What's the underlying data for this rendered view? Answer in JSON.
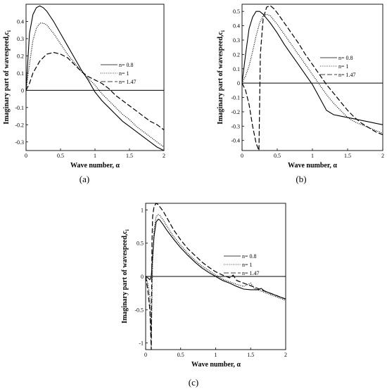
{
  "chart_data": [
    {
      "type": "line",
      "caption": "(a)",
      "xlabel": "Wave number, α",
      "ylabel": "Imaginary part of wavespeed,c",
      "ylabel_sub": "i",
      "xlim": [
        0,
        2
      ],
      "ylim": [
        -0.35,
        0.5
      ],
      "xticks": [
        "0",
        "0.5",
        "1",
        "1.5",
        "2"
      ],
      "yticks": [
        "-0.3",
        "-0.2",
        "-0.1",
        "0",
        "0.1",
        "0.2",
        "0.3",
        "0.4"
      ],
      "grid": false,
      "legend": "right",
      "series": [
        {
          "name": "n= 0.8",
          "style": "solid",
          "x": [
            0,
            0.05,
            0.1,
            0.15,
            0.2,
            0.25,
            0.3,
            0.4,
            0.5,
            0.6,
            0.7,
            0.8,
            0.9,
            1.0,
            1.1,
            1.2,
            1.3,
            1.4,
            1.5,
            1.6,
            1.7,
            1.8,
            1.9,
            2.0
          ],
          "y": [
            0,
            0.33,
            0.44,
            0.48,
            0.49,
            0.48,
            0.46,
            0.4,
            0.33,
            0.26,
            0.19,
            0.12,
            0.06,
            -0.01,
            -0.06,
            -0.1,
            -0.14,
            -0.18,
            -0.21,
            -0.24,
            -0.27,
            -0.3,
            -0.33,
            -0.35
          ]
        },
        {
          "name": "n= 1",
          "style": "dotted",
          "x": [
            0,
            0.05,
            0.1,
            0.15,
            0.2,
            0.25,
            0.3,
            0.4,
            0.5,
            0.6,
            0.7,
            0.8,
            0.9,
            1.0,
            1.1,
            1.2,
            1.3,
            1.4,
            1.5,
            1.6,
            1.7,
            1.8,
            1.9,
            2.0
          ],
          "y": [
            0,
            0.15,
            0.29,
            0.36,
            0.39,
            0.39,
            0.38,
            0.33,
            0.27,
            0.21,
            0.16,
            0.11,
            0.07,
            0.03,
            -0.02,
            -0.06,
            -0.1,
            -0.14,
            -0.17,
            -0.21,
            -0.24,
            -0.27,
            -0.3,
            -0.33
          ]
        },
        {
          "name": "n= 1.47",
          "style": "dashed",
          "x": [
            0,
            0.05,
            0.1,
            0.2,
            0.3,
            0.4,
            0.5,
            0.6,
            0.7,
            0.8,
            0.9,
            1.0,
            1.1,
            1.2,
            1.3,
            1.4,
            1.5,
            1.6,
            1.7,
            1.8,
            1.9,
            2.0
          ],
          "y": [
            0,
            0.04,
            0.1,
            0.17,
            0.21,
            0.22,
            0.21,
            0.19,
            0.15,
            0.11,
            0.08,
            0.06,
            0.04,
            0.01,
            -0.03,
            -0.06,
            -0.09,
            -0.12,
            -0.15,
            -0.18,
            -0.2,
            -0.23
          ]
        }
      ]
    },
    {
      "type": "line",
      "caption": "(b)",
      "xlabel": "Wave number, α",
      "ylabel": "Imaginary part of wavespeed,c",
      "ylabel_sub": "i",
      "xlim": [
        0,
        2
      ],
      "ylim": [
        -0.47,
        0.55
      ],
      "xticks": [
        "0",
        "0.5",
        "1",
        "1.5",
        "2"
      ],
      "yticks": [
        "-0.4",
        "-0.3",
        "-0.2",
        "-0.1",
        "0",
        "0.1",
        "0.2",
        "0.3",
        "0.4",
        "0.5"
      ],
      "grid": false,
      "legend": "right",
      "series": [
        {
          "name": "n= 0.8",
          "style": "solid",
          "x": [
            0,
            0.05,
            0.1,
            0.15,
            0.2,
            0.25,
            0.3,
            0.4,
            0.5,
            0.6,
            0.7,
            0.8,
            0.9,
            1.0,
            1.1,
            1.2,
            1.3,
            1.4,
            1.5,
            1.6,
            1.7,
            1.8,
            1.9,
            2.0
          ],
          "y": [
            0,
            0.2,
            0.38,
            0.46,
            0.5,
            0.5,
            0.48,
            0.42,
            0.35,
            0.27,
            0.2,
            0.13,
            0.06,
            -0.01,
            -0.1,
            -0.19,
            -0.22,
            -0.23,
            -0.24,
            -0.25,
            -0.26,
            -0.27,
            -0.28,
            -0.29
          ]
        },
        {
          "name": "n= 1",
          "style": "dotted",
          "x": [
            0,
            0.05,
            0.1,
            0.15,
            0.2,
            0.25,
            0.3,
            0.35,
            0.4,
            0.5,
            0.6,
            0.7,
            0.8,
            0.9,
            1.0,
            1.1,
            1.2,
            1.3,
            1.4,
            1.5,
            1.6,
            1.7,
            1.8,
            1.9,
            2.0
          ],
          "y": [
            0,
            0.05,
            0.12,
            0.22,
            0.33,
            0.42,
            0.47,
            0.48,
            0.47,
            0.41,
            0.34,
            0.27,
            0.2,
            0.13,
            0.06,
            -0.01,
            -0.08,
            -0.14,
            -0.19,
            -0.24,
            -0.27,
            -0.29,
            -0.31,
            -0.33,
            -0.35
          ]
        },
        {
          "name": "n= 1.47",
          "style": "dashed",
          "x": [
            0,
            0.05,
            0.1,
            0.15,
            0.2,
            0.24,
            0.26,
            0.3,
            0.35,
            0.4,
            0.45,
            0.5,
            0.6,
            0.7,
            0.8,
            0.9,
            1.0,
            1.1,
            1.2,
            1.3,
            1.4,
            1.5,
            1.6,
            1.7,
            1.8,
            1.9,
            2.0
          ],
          "y": [
            0,
            -0.05,
            -0.15,
            -0.3,
            -0.42,
            -0.47,
            0.2,
            0.45,
            0.53,
            0.54,
            0.52,
            0.49,
            0.42,
            0.35,
            0.28,
            0.2,
            0.13,
            0.06,
            -0.01,
            -0.07,
            -0.13,
            -0.19,
            -0.24,
            -0.28,
            -0.31,
            -0.34,
            -0.36
          ]
        }
      ]
    },
    {
      "type": "line",
      "caption": "(c)",
      "xlabel": "Wave number, α",
      "ylabel": "Imaginary part of wavespeed,c",
      "ylabel_sub": "i",
      "xlim": [
        0,
        2
      ],
      "ylim": [
        -1.1,
        1.1
      ],
      "xticks": [
        "0",
        "0.5",
        "1",
        "1.5",
        "2"
      ],
      "yticks": [
        "-1",
        "-0.5",
        "0",
        "0.5",
        "1"
      ],
      "grid": false,
      "legend": "right",
      "series": [
        {
          "name": "n= 0.8",
          "style": "solid",
          "x": [
            0,
            0.03,
            0.06,
            0.08,
            0.1,
            0.12,
            0.15,
            0.18,
            0.2,
            0.25,
            0.3,
            0.4,
            0.5,
            0.6,
            0.7,
            0.8,
            0.9,
            1.0,
            1.1,
            1.2,
            1.3,
            1.4,
            1.5,
            1.6,
            1.65,
            1.7,
            1.8,
            1.9,
            2.0
          ],
          "y": [
            0,
            -0.02,
            -0.05,
            0.0,
            0.3,
            0.6,
            0.82,
            0.86,
            0.85,
            0.78,
            0.7,
            0.56,
            0.43,
            0.32,
            0.22,
            0.13,
            0.06,
            0.0,
            -0.06,
            -0.1,
            -0.15,
            -0.19,
            -0.2,
            -0.2,
            -0.18,
            -0.22,
            -0.26,
            -0.3,
            -0.34
          ]
        },
        {
          "name": "n= 1",
          "style": "dotted",
          "x": [
            0,
            0.03,
            0.06,
            0.08,
            0.1,
            0.12,
            0.15,
            0.18,
            0.2,
            0.25,
            0.3,
            0.4,
            0.5,
            0.6,
            0.7,
            0.8,
            0.9,
            1.0,
            1.1,
            1.2,
            1.3,
            1.4,
            1.5,
            1.55,
            1.6,
            1.7,
            1.8,
            1.9,
            2.0
          ],
          "y": [
            0,
            -0.1,
            -0.3,
            -0.9,
            0.2,
            0.7,
            0.9,
            0.93,
            0.92,
            0.85,
            0.76,
            0.6,
            0.47,
            0.35,
            0.25,
            0.16,
            0.09,
            0.02,
            -0.04,
            -0.08,
            -0.12,
            -0.15,
            -0.1,
            -0.18,
            -0.2,
            -0.24,
            -0.28,
            -0.32,
            -0.36
          ]
        },
        {
          "name": "n= 1.47",
          "style": "dashed",
          "x": [
            0,
            0.03,
            0.06,
            0.08,
            0.09,
            0.1,
            0.12,
            0.15,
            0.18,
            0.2,
            0.25,
            0.3,
            0.4,
            0.5,
            0.6,
            0.7,
            0.8,
            0.9,
            1.0,
            1.1,
            1.2,
            1.25,
            1.3,
            1.4,
            1.5,
            1.6,
            1.7,
            1.8,
            1.9,
            2.0
          ],
          "y": [
            0,
            -0.2,
            -0.5,
            -1.1,
            0.5,
            0.9,
            1.05,
            1.1,
            1.08,
            1.05,
            0.98,
            0.89,
            0.7,
            0.55,
            0.42,
            0.32,
            0.22,
            0.14,
            0.07,
            0.02,
            -0.02,
            0.02,
            -0.06,
            -0.1,
            -0.14,
            -0.18,
            -0.22,
            -0.26,
            -0.3,
            -0.34
          ]
        }
      ]
    }
  ]
}
